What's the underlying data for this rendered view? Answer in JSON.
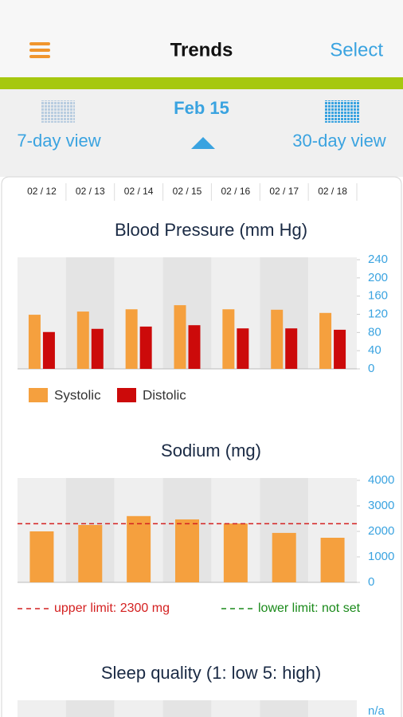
{
  "header": {
    "title": "Trends",
    "action": "Select"
  },
  "nav": {
    "date": "Feb 15",
    "left": "7-day view",
    "right": "30-day view"
  },
  "dates": [
    "02 / 12",
    "02 / 13",
    "02 / 14",
    "02 / 15",
    "02 / 16",
    "02 / 17",
    "02 / 18"
  ],
  "chart_data": [
    {
      "type": "bar",
      "title": "Blood Pressure (mm Hg)",
      "series": [
        {
          "name": "Systolic",
          "color": "#f5a03e",
          "values": [
            119,
            126,
            131,
            140,
            131,
            130,
            123
          ]
        },
        {
          "name": "Distolic",
          "color": "#cc0a0a",
          "values": [
            81,
            88,
            93,
            96,
            89,
            89,
            86
          ]
        }
      ],
      "ylim": [
        0,
        240
      ],
      "yticks": [
        0,
        40,
        80,
        120,
        160,
        200,
        240
      ]
    },
    {
      "type": "bar",
      "title": "Sodium (mg)",
      "series": [
        {
          "color": "#f5a03e",
          "values": [
            2000,
            2250,
            2600,
            2470,
            2310,
            1940,
            1750
          ]
        }
      ],
      "ylim": [
        0,
        4000
      ],
      "yticks": [
        0,
        1000,
        2000,
        3000,
        4000
      ],
      "limits": [
        {
          "value": 2300,
          "label": "upper limit: 2300 mg",
          "color": "#d42020"
        },
        {
          "label": "lower limit: not set",
          "color": "#1a8a1a"
        }
      ]
    },
    {
      "type": "bar",
      "title": "Sleep quality (1: low 5: high)",
      "y_label": "n/a"
    }
  ]
}
